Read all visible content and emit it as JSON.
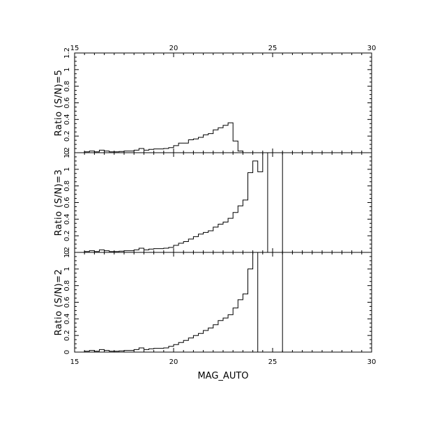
{
  "chart_data": [
    {
      "type": "line",
      "ylabel": "Ratio (S/N)=5",
      "xlim": [
        15,
        30
      ],
      "ylim": [
        0,
        1.2
      ],
      "x_ticks": [
        "15",
        "20",
        "25",
        "30"
      ],
      "y_ticks": [
        "0",
        "0.2",
        "0.4",
        "0.6",
        "0.8",
        "1",
        "1.2"
      ],
      "step_x": [
        15.75,
        16.0,
        16.25,
        16.5,
        16.75,
        17.0,
        17.25,
        17.5,
        17.75,
        18.0,
        18.25,
        18.5,
        18.75,
        19.0,
        19.25,
        19.5,
        19.75,
        20.0,
        20.25,
        20.5,
        20.75,
        21.0,
        21.25,
        21.5,
        21.75,
        22.0,
        22.25,
        22.5,
        22.75,
        23.0,
        23.25,
        23.5,
        23.75
      ],
      "step_y": [
        0.01,
        0.02,
        0.01,
        0.03,
        0.02,
        0.01,
        0.01,
        0.015,
        0.02,
        0.02,
        0.03,
        0.05,
        0.03,
        0.04,
        0.045,
        0.045,
        0.05,
        0.06,
        0.085,
        0.115,
        0.115,
        0.155,
        0.165,
        0.185,
        0.215,
        0.23,
        0.275,
        0.3,
        0.33,
        0.36,
        0.14,
        0.02,
        0.0
      ],
      "vline": null
    },
    {
      "type": "line",
      "ylabel": "Ratio (S/N)=3",
      "xlim": [
        15,
        30
      ],
      "ylim": [
        0,
        1.2
      ],
      "x_ticks": [],
      "y_ticks": [
        "0",
        "0.2",
        "0.4",
        "0.6",
        "0.8",
        "1",
        "1.2"
      ],
      "step_x": [
        15.75,
        16.0,
        16.25,
        16.5,
        16.75,
        17.0,
        17.25,
        17.5,
        17.75,
        18.0,
        18.25,
        18.5,
        18.75,
        19.0,
        19.25,
        19.5,
        19.75,
        20.0,
        20.25,
        20.5,
        20.75,
        21.0,
        21.25,
        21.5,
        21.75,
        22.0,
        22.25,
        22.5,
        22.75,
        23.0,
        23.25,
        23.5,
        23.75,
        24.0,
        24.25,
        24.5,
        24.75
      ],
      "step_y": [
        0.01,
        0.02,
        0.01,
        0.03,
        0.02,
        0.01,
        0.01,
        0.015,
        0.02,
        0.02,
        0.03,
        0.05,
        0.03,
        0.04,
        0.045,
        0.045,
        0.05,
        0.06,
        0.085,
        0.11,
        0.13,
        0.16,
        0.19,
        0.22,
        0.24,
        0.26,
        0.305,
        0.34,
        0.365,
        0.41,
        0.48,
        0.56,
        0.63,
        0.96,
        1.1,
        0.97,
        1.2
      ],
      "vline": 25.5
    },
    {
      "type": "line",
      "ylabel": "Ratio (S/N)=2",
      "xlabel": "MAG_AUTO",
      "xlim": [
        15,
        30
      ],
      "ylim": [
        0,
        1.2
      ],
      "x_ticks": [
        "15",
        "20",
        "25",
        "30"
      ],
      "y_ticks": [
        "0",
        "0.2",
        "0.4",
        "0.6",
        "0.8",
        "1",
        "1.2"
      ],
      "step_x": [
        15.75,
        16.0,
        16.25,
        16.5,
        16.75,
        17.0,
        17.25,
        17.5,
        17.75,
        18.0,
        18.25,
        18.5,
        18.75,
        19.0,
        19.25,
        19.5,
        19.75,
        20.0,
        20.25,
        20.5,
        20.75,
        21.0,
        21.25,
        21.5,
        21.75,
        22.0,
        22.25,
        22.5,
        22.75,
        23.0,
        23.25,
        23.5,
        23.75,
        24.0,
        24.25
      ],
      "step_y": [
        0.01,
        0.02,
        0.01,
        0.03,
        0.02,
        0.01,
        0.01,
        0.015,
        0.02,
        0.02,
        0.03,
        0.05,
        0.03,
        0.04,
        0.045,
        0.045,
        0.05,
        0.07,
        0.09,
        0.115,
        0.14,
        0.17,
        0.2,
        0.225,
        0.26,
        0.29,
        0.33,
        0.38,
        0.41,
        0.45,
        0.53,
        0.63,
        0.7,
        1.0,
        1.2
      ],
      "vline": 25.5
    }
  ]
}
